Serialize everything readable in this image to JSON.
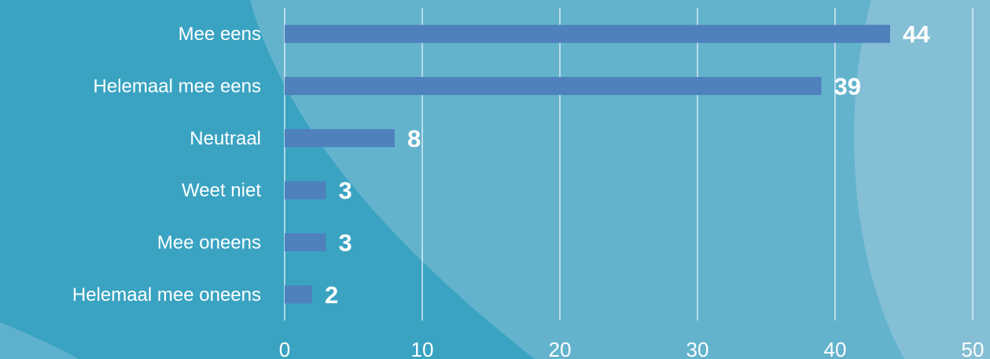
{
  "colors": {
    "background_dark": "#3aa3c2",
    "background_mid": "#63b3cd",
    "background_light": "#84bfd5",
    "bar": "#4f81bd",
    "gridline": "#e8f3f7",
    "text": "#ffffff"
  },
  "chart_data": {
    "type": "bar",
    "orientation": "horizontal",
    "categories": [
      "Mee eens",
      "Helemaal mee eens",
      "Neutraal",
      "Weet niet",
      "Mee oneens",
      "Helemaal mee oneens"
    ],
    "values": [
      44,
      39,
      8,
      3,
      3,
      2
    ],
    "data_labels": [
      "44",
      "39",
      "8",
      "3",
      "3",
      "2"
    ],
    "xlim": [
      0,
      50
    ],
    "xticks": [
      "0",
      "10",
      "20",
      "30",
      "40",
      "50"
    ],
    "grid": true,
    "legend": "none"
  }
}
